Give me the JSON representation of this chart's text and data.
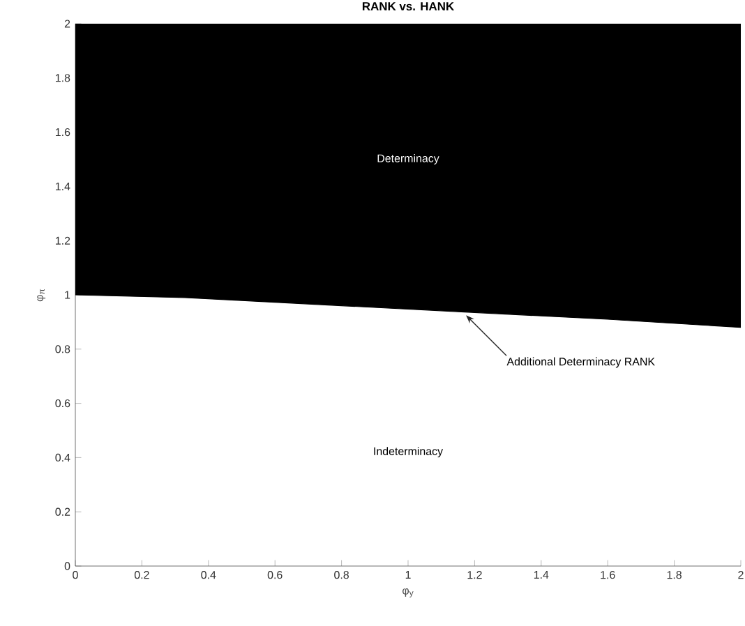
{
  "chart_data": {
    "type": "line",
    "title": "RANK vs. HANK",
    "xlabel": "φ$_{y}$",
    "ylabel": "φ$_{π}$",
    "x": [
      0,
      0.33,
      0.8,
      1.2,
      1.6,
      2
    ],
    "series": [
      {
        "color": "#000000",
        "values": [
          1.0,
          0.99,
          0.96,
          0.935,
          0.91,
          0.88
        ],
        "lower": [
          1.0,
          0.99,
          0.96,
          0.935,
          0.91,
          0.88
        ],
        "upper": [
          2,
          2,
          2,
          2,
          2,
          2
        ]
      }
    ],
    "xlim": [
      0,
      2
    ],
    "ylim": [
      0,
      2
    ],
    "xticks": [
      0,
      0.2,
      0.4,
      0.6,
      0.8,
      1,
      1.2,
      1.4,
      1.6,
      1.8,
      2
    ],
    "yticks": [
      0,
      0.2,
      0.4,
      0.6,
      0.8,
      1,
      1.2,
      1.4,
      1.6,
      1.8,
      2
    ],
    "grid": false,
    "annotations": [
      "Determinacy",
      "Indeterminacy",
      {
        "text": "Additional Determinacy RANK",
        "x": 1.17,
        "y": 0.93
      }
    ]
  }
}
